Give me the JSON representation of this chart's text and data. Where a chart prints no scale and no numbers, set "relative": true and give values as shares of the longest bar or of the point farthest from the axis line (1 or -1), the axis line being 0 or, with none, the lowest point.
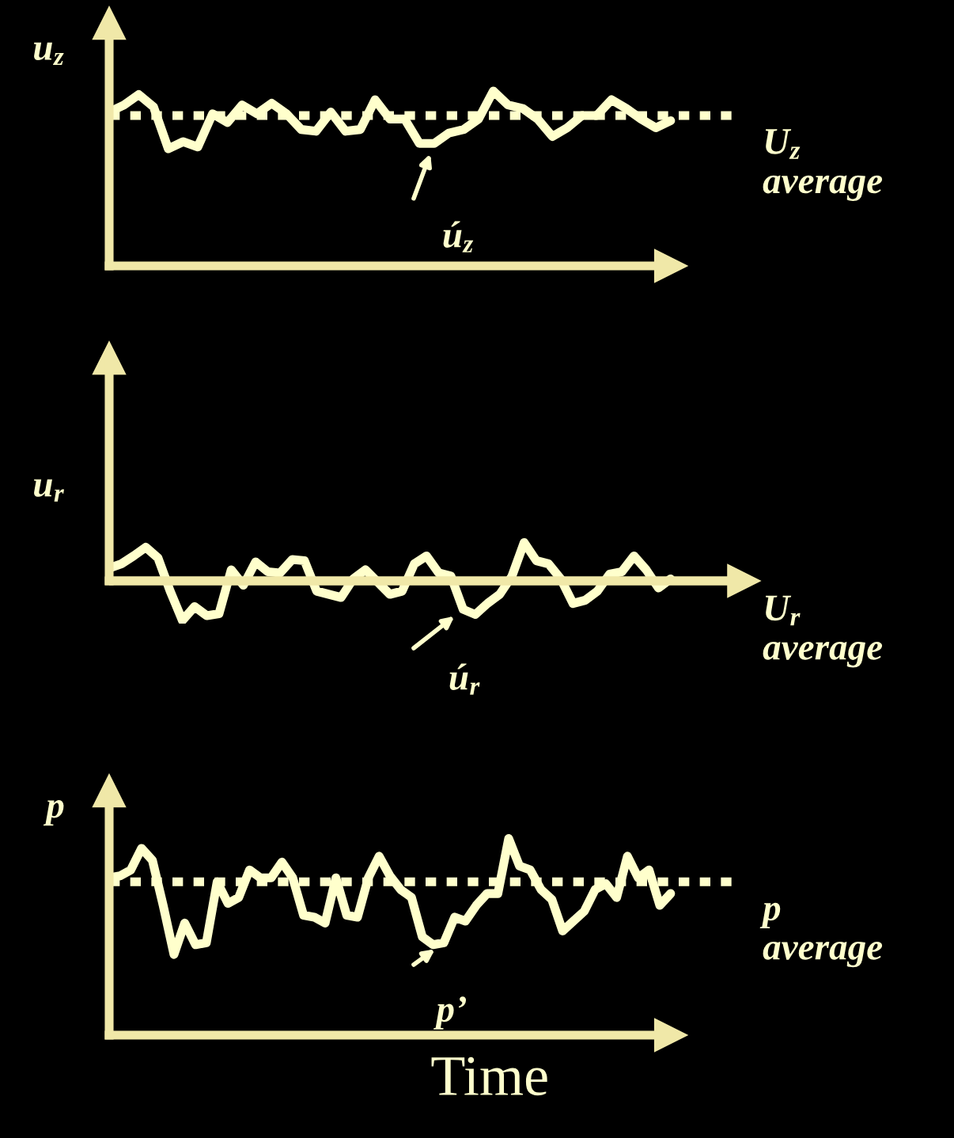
{
  "chart_data": [
    {
      "type": "line",
      "relative": true,
      "ylabel": "u$_{z}$",
      "annotations": [
        "ú$_{z}$"
      ],
      "categories": [
        null,
        null,
        null,
        null,
        null,
        null,
        null,
        null,
        null,
        null,
        null,
        null,
        null,
        null,
        null,
        null,
        null,
        null,
        null,
        null,
        null,
        null,
        null,
        null,
        null,
        null,
        null,
        null,
        null,
        null,
        null,
        null,
        null,
        null,
        null,
        null,
        null,
        null,
        null
      ],
      "series": [
        {
          "color": "#ffffcc",
          "line_style": "solid",
          "values": [
            0.88,
            0.92,
            0.98,
            0.91,
            0.67,
            0.71,
            0.68,
            0.87,
            0.82,
            0.92,
            0.87,
            0.93,
            0.87,
            0.78,
            0.77,
            0.88,
            0.77,
            0.78,
            0.95,
            0.84,
            0.84,
            0.7,
            0.7,
            0.76,
            0.78,
            0.84,
            1,
            0.92,
            0.9,
            0.84,
            0.74,
            0.79,
            0.86,
            0.86,
            0.95,
            0.9,
            0.84,
            0.79,
            0.83
          ]
        }
      ],
      "ref_lines": [
        {
          "axis": "y",
          "value": 0.86,
          "label": "U$_{z}$\naverage",
          "line_style": "dotted",
          "color": "#ffffcc"
        }
      ]
    },
    {
      "type": "line",
      "relative": true,
      "ylabel": "u$_{r}$",
      "annotations": [
        "ú$_{r}$"
      ],
      "categories": [
        null,
        null,
        null,
        null,
        null,
        null,
        null,
        null,
        null,
        null,
        null,
        null,
        null,
        null,
        null,
        null,
        null,
        null,
        null,
        null,
        null,
        null,
        null,
        null,
        null,
        null,
        null,
        null,
        null,
        null,
        null,
        null,
        null,
        null,
        null,
        null,
        null,
        null,
        null,
        null,
        null,
        null,
        null,
        null,
        null,
        null,
        null
      ],
      "series": [
        {
          "color": "#ffffcc",
          "line_style": "solid",
          "values": [
            0.32,
            0.43,
            0.63,
            0.85,
            0.58,
            -0.26,
            -1,
            -0.65,
            -0.88,
            -0.83,
            0.28,
            -0.11,
            0.48,
            0.23,
            0.2,
            0.54,
            0.51,
            -0.26,
            -0.34,
            -0.42,
            0.05,
            0.28,
            -0.03,
            -0.34,
            -0.26,
            0.43,
            0.63,
            0.2,
            0.12,
            -0.72,
            -0.85,
            -0.57,
            -0.34,
            0.12,
            0.97,
            0.51,
            0.43,
            0.05,
            -0.57,
            -0.49,
            -0.26,
            0.17,
            0.23,
            0.63,
            0.28,
            -0.18,
            0.05
          ]
        }
      ],
      "ref_lines": [
        {
          "axis": "y",
          "value": 0,
          "label": "U$_{r}$\naverage",
          "line_style": "solid",
          "color": "#f0e8a8"
        }
      ]
    },
    {
      "type": "line",
      "relative": true,
      "ylabel": "p",
      "xlabel": "Time",
      "annotations": [
        "p’"
      ],
      "categories": [
        null,
        null,
        null,
        null,
        null,
        null,
        null,
        null,
        null,
        null,
        null,
        null,
        null,
        null,
        null,
        null,
        null,
        null,
        null,
        null,
        null,
        null,
        null,
        null,
        null,
        null,
        null,
        null,
        null,
        null,
        null,
        null,
        null,
        null,
        null,
        null,
        null,
        null,
        null,
        null,
        null,
        null,
        null,
        null,
        null,
        null,
        null,
        null,
        null,
        null,
        null,
        null,
        null
      ],
      "series": [
        {
          "color": "#ffffcc",
          "line_style": "solid",
          "values": [
            0.8,
            0.81,
            0.84,
            0.95,
            0.89,
            0.66,
            0.41,
            0.57,
            0.46,
            0.47,
            0.78,
            0.67,
            0.7,
            0.84,
            0.8,
            0.8,
            0.88,
            0.8,
            0.61,
            0.6,
            0.57,
            0.8,
            0.61,
            0.6,
            0.8,
            0.91,
            0.81,
            0.74,
            0.7,
            0.5,
            0.46,
            0.47,
            0.6,
            0.58,
            0.66,
            0.72,
            0.72,
            1,
            0.86,
            0.84,
            0.74,
            0.69,
            0.53,
            0.58,
            0.63,
            0.74,
            0.77,
            0.7,
            0.91,
            0.8,
            0.84,
            0.66,
            0.72
          ]
        }
      ],
      "ref_lines": [
        {
          "axis": "y",
          "value": 0.78,
          "label": "p\naverage",
          "line_style": "dotted",
          "color": "#ffffcc"
        }
      ]
    }
  ]
}
